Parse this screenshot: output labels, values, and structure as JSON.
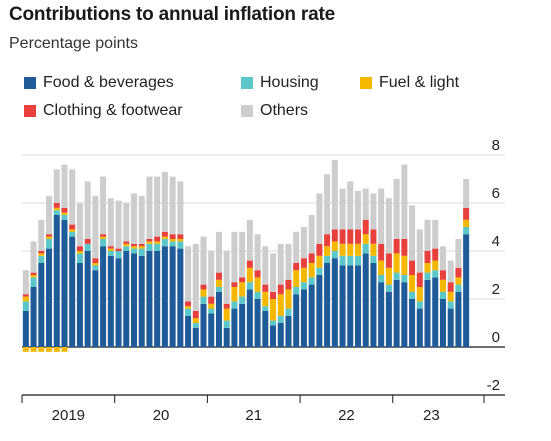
{
  "chart_data": {
    "type": "stacked-bar",
    "title": "Contributions to annual inflation rate",
    "subtitle": "Percentage points",
    "ylim": [
      -2,
      8
    ],
    "yticks": [
      8,
      6,
      4,
      2,
      0,
      -2
    ],
    "x_labels": [
      "2019",
      "20",
      "21",
      "22",
      "23"
    ],
    "legend_placement": "top",
    "grid": true,
    "series": [
      {
        "name": "Food & beverages",
        "color": "#1f5a99",
        "values": [
          1.5,
          2.5,
          3.5,
          4.1,
          5.5,
          5.3,
          4.6,
          3.5,
          4.0,
          3.2,
          4.2,
          3.8,
          3.7,
          4.0,
          3.9,
          3.8,
          4.0,
          4.0,
          4.2,
          4.2,
          4.1,
          1.3,
          0.8,
          1.8,
          1.4,
          2.3,
          0.8,
          1.6,
          1.8,
          2.4,
          2.0,
          1.5,
          0.9,
          1.0,
          1.3,
          2.2,
          2.4,
          2.6,
          3.0,
          3.5,
          3.7,
          3.4,
          3.4,
          3.4,
          3.9,
          3.5,
          2.7,
          2.3,
          2.8,
          2.7,
          2.0,
          1.6,
          2.8,
          2.9,
          2.0,
          1.6,
          2.3,
          4.7
        ]
      },
      {
        "name": "Housing",
        "color": "#5cc7c9",
        "values": [
          0.4,
          0.4,
          0.3,
          0.4,
          0.2,
          0.2,
          0.2,
          0.4,
          0.3,
          0.2,
          0.3,
          0.2,
          0.3,
          0.2,
          0.2,
          0.3,
          0.3,
          0.3,
          0.3,
          0.2,
          0.3,
          0.3,
          0.2,
          0.3,
          0.2,
          0.2,
          0.3,
          0.3,
          0.3,
          0.3,
          0.3,
          0.2,
          0.2,
          0.3,
          0.3,
          0.3,
          0.3,
          0.3,
          0.3,
          0.3,
          0.3,
          0.4,
          0.4,
          0.4,
          0.4,
          0.3,
          0.3,
          0.3,
          0.3,
          0.3,
          0.3,
          0.3,
          0.3,
          0.3,
          0.3,
          0.3,
          0.3,
          0.3
        ]
      },
      {
        "name": "Fuel & light",
        "color": "#f5b800",
        "values": [
          0.2,
          0.1,
          0.1,
          0.1,
          0.1,
          0.1,
          0.1,
          0.1,
          0.0,
          0.1,
          0.1,
          0.1,
          0.0,
          0.1,
          0.1,
          0.1,
          0.1,
          0.1,
          0.1,
          0.1,
          0.1,
          0.1,
          0.2,
          0.3,
          0.2,
          0.3,
          0.5,
          0.6,
          0.6,
          0.6,
          0.6,
          0.6,
          0.9,
          0.9,
          0.8,
          0.7,
          0.6,
          0.6,
          0.5,
          0.4,
          0.4,
          0.5,
          0.5,
          0.5,
          0.4,
          0.5,
          0.6,
          0.7,
          0.8,
          0.8,
          0.7,
          0.6,
          0.4,
          0.4,
          0.5,
          0.4,
          0.3,
          0.3
        ]
      },
      {
        "name": "Clothing & footwear",
        "color": "#e8413d",
        "values": [
          0.1,
          0.1,
          0.1,
          0.1,
          0.2,
          0.2,
          0.2,
          0.2,
          0.2,
          0.2,
          0.1,
          0.1,
          0.1,
          0.1,
          0.1,
          0.1,
          0.1,
          0.2,
          0.2,
          0.2,
          0.2,
          0.2,
          0.3,
          0.2,
          0.3,
          0.3,
          0.2,
          0.2,
          0.2,
          0.3,
          0.3,
          0.3,
          0.3,
          0.4,
          0.4,
          0.3,
          0.4,
          0.4,
          0.5,
          0.5,
          0.5,
          0.6,
          0.6,
          0.6,
          0.6,
          0.6,
          0.7,
          0.6,
          0.6,
          0.7,
          0.6,
          0.6,
          0.5,
          0.5,
          0.4,
          0.4,
          0.4,
          0.5
        ]
      },
      {
        "name": "Others",
        "color": "#cdcdcd",
        "values": [
          1.0,
          1.3,
          1.3,
          1.6,
          1.4,
          1.8,
          2.3,
          1.8,
          2.4,
          2.6,
          2.4,
          2.0,
          2.0,
          1.6,
          2.1,
          2.0,
          2.6,
          2.5,
          2.5,
          2.4,
          2.2,
          2.3,
          2.8,
          2.0,
          1.9,
          1.7,
          2.2,
          2.1,
          1.9,
          1.7,
          1.5,
          1.6,
          1.6,
          1.7,
          1.5,
          1.3,
          1.3,
          1.6,
          2.1,
          2.5,
          2.9,
          1.7,
          2.0,
          1.6,
          1.3,
          1.5,
          2.3,
          2.3,
          2.5,
          3.1,
          2.3,
          1.8,
          1.3,
          1.2,
          1.0,
          0.9,
          1.2,
          1.2
        ]
      },
      {
        "name": "Fuel & light (negative)",
        "color": "#f5b800",
        "values": [
          -0.2,
          -0.2,
          -0.2,
          -0.2,
          -0.2,
          -0.2,
          0,
          0,
          0,
          0,
          0,
          0,
          0,
          0,
          0,
          0,
          0,
          0,
          0,
          0,
          0,
          0,
          0,
          0,
          0,
          0,
          0,
          0,
          0,
          0,
          0,
          0,
          0,
          0,
          0,
          0,
          0,
          0,
          0,
          0,
          0,
          0,
          0,
          0,
          0,
          0,
          0,
          0,
          0,
          0,
          0,
          0,
          0,
          0,
          0,
          0,
          0,
          0
        ]
      }
    ]
  }
}
